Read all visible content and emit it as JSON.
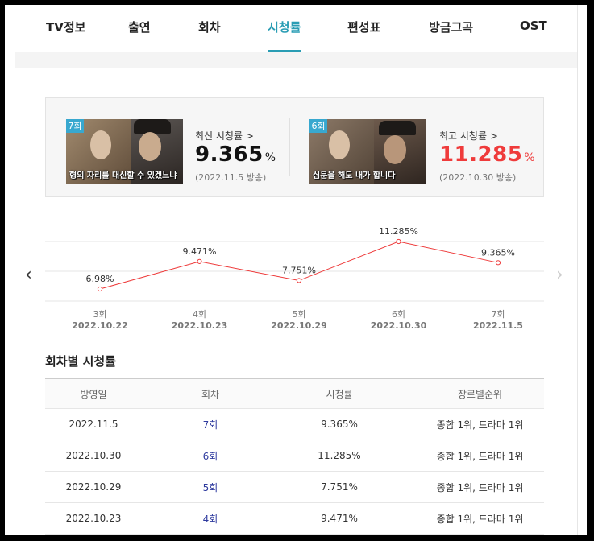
{
  "tabs": [
    {
      "label": "TV정보"
    },
    {
      "label": "출연"
    },
    {
      "label": "회차"
    },
    {
      "label": "시청률",
      "active": true
    },
    {
      "label": "편성표"
    },
    {
      "label": "방금그곡"
    },
    {
      "label": "OST"
    }
  ],
  "summary": {
    "latest": {
      "label": "최신 시청률 >",
      "value": "9.365",
      "unit": "%",
      "date": "(2022.11.5 방송)",
      "episode_badge": "7회",
      "thumb_caption": "형의 자리를 대신할 수 있겠느냐"
    },
    "best": {
      "label": "최고 시청률 >",
      "value": "11.285",
      "unit": "%",
      "date": "(2022.10.30 방송)",
      "episode_badge": "6회",
      "thumb_caption": "심문을 해도 내가 합니다"
    },
    "colors": {
      "highlight": "#ef3b3b"
    }
  },
  "nav": {
    "prev_icon": "chevron-left-icon",
    "next_icon": "chevron-right-icon"
  },
  "chart_data": {
    "type": "line",
    "categories": [
      "3회",
      "4회",
      "5회",
      "6회",
      "7회"
    ],
    "dates": [
      "2022.10.22",
      "2022.10.23",
      "2022.10.29",
      "2022.10.30",
      "2022.11.5"
    ],
    "values": [
      6.98,
      9.471,
      7.751,
      11.285,
      9.365
    ],
    "labels": [
      "6.98%",
      "9.471%",
      "7.751%",
      "11.285%",
      "9.365%"
    ],
    "line_color": "#ee3a3a",
    "grid": true
  },
  "table": {
    "title": "회차별 시청률",
    "headers": [
      "방영일",
      "회차",
      "시청률",
      "장르별순위"
    ],
    "rows": [
      [
        "2022.11.5",
        "7회",
        "9.365%",
        "종합 1위, 드라마 1위"
      ],
      [
        "2022.10.30",
        "6회",
        "11.285%",
        "종합 1위, 드라마 1위"
      ],
      [
        "2022.10.29",
        "5회",
        "7.751%",
        "종합 1위, 드라마 1위"
      ],
      [
        "2022.10.23",
        "4회",
        "9.471%",
        "종합 1위, 드라마 1위"
      ]
    ]
  }
}
